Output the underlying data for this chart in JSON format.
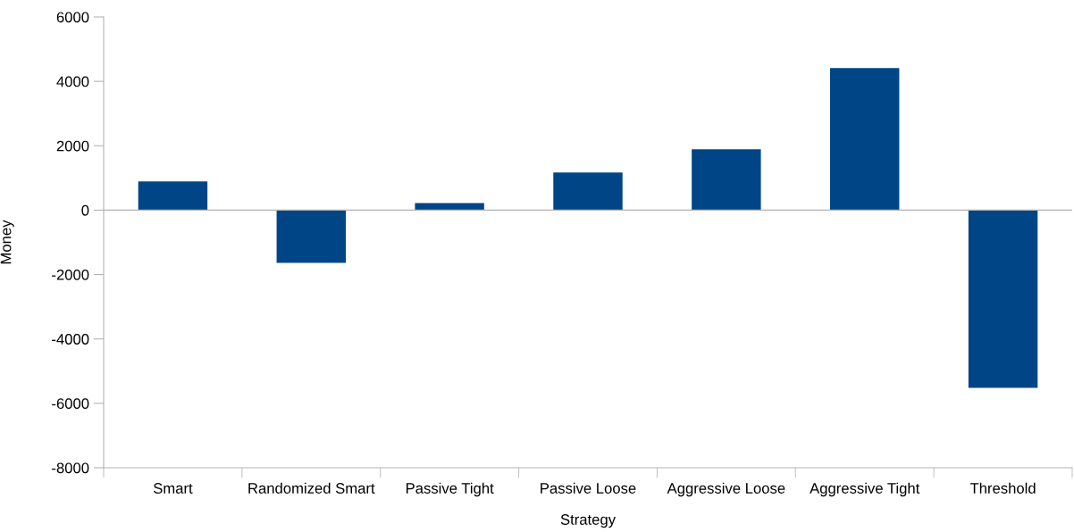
{
  "chart_data": {
    "type": "bar",
    "xlabel": "Strategy",
    "ylabel": "Money",
    "categories": [
      "Smart",
      "Randomized Smart",
      "Passive Tight",
      "Passive Loose",
      "Aggressive Loose",
      "Aggressive Tight",
      "Threshold"
    ],
    "values": [
      890,
      -1640,
      220,
      1170,
      1890,
      4410,
      -5520
    ],
    "color": "#004586",
    "ylim": [
      -8000,
      6000
    ],
    "yticks": [
      -8000,
      -6000,
      -4000,
      -2000,
      0,
      2000,
      4000,
      6000
    ],
    "ref_lines": [
      {
        "axis": "y",
        "value": 0,
        "label": null,
        "color": "#b3b3b3"
      }
    ],
    "grid": false,
    "legend": false
  }
}
